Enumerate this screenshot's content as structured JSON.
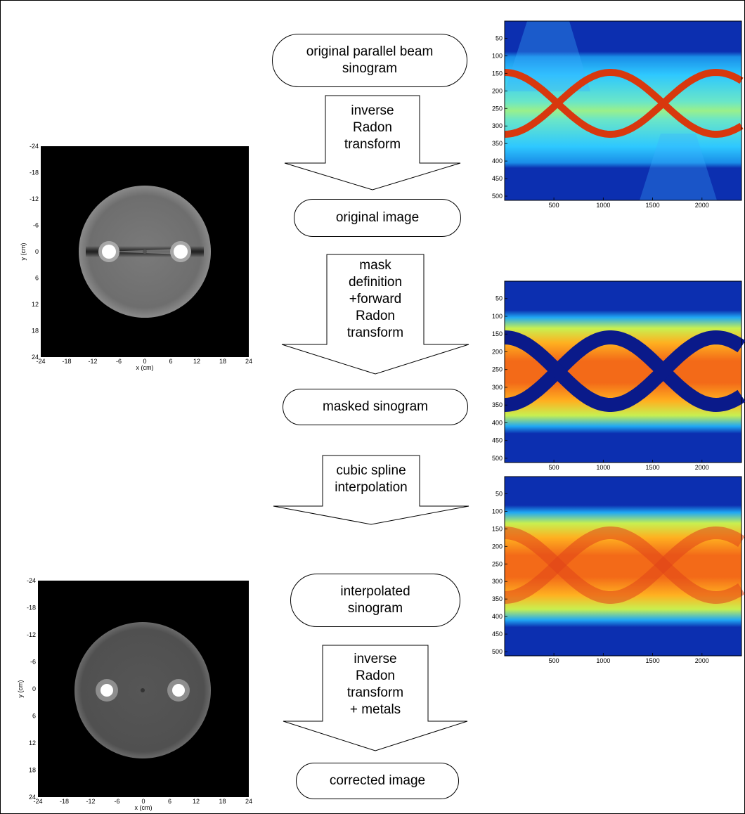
{
  "boxes": [
    {
      "id": "original-sinogram",
      "text": "original parallel beam\nsinogram"
    },
    {
      "id": "original-image",
      "text": "original image"
    },
    {
      "id": "masked-sinogram",
      "text": "masked sinogram"
    },
    {
      "id": "interpolated-sinogram",
      "text": "interpolated\nsinogram"
    },
    {
      "id": "corrected-image",
      "text": "corrected image"
    }
  ],
  "arrows": [
    {
      "id": "inverse-radon",
      "text": "inverse\nRadon\ntransform"
    },
    {
      "id": "mask-forward",
      "text": "mask\ndefinition\n+forward\nRadon\ntransform"
    },
    {
      "id": "cubic-spline",
      "text": "cubic spline\ninterpolation"
    },
    {
      "id": "inverse-radon-metals",
      "text": "inverse\nRadon\ntransform\n+ metals"
    }
  ],
  "ct_images": {
    "x_label": "x (cm)",
    "y_label": "y (cm)",
    "ticks": [
      "-24",
      "-18",
      "-12",
      "-6",
      "0",
      "6",
      "12",
      "18",
      "24"
    ],
    "range": [
      -24,
      24
    ]
  },
  "sinograms": {
    "x_ticks": [
      "500",
      "1000",
      "1500",
      "2000"
    ],
    "y_ticks": [
      "50",
      "100",
      "150",
      "200",
      "250",
      "300",
      "350",
      "400",
      "450",
      "500"
    ],
    "x_range": [
      1,
      2400
    ],
    "y_range": [
      1,
      512
    ]
  },
  "colors": {
    "sino_background": "#0a2fb0",
    "sino_band": "#22c6ff",
    "sino_trace": "#e23a10",
    "sino_mask": "#0a1a8a",
    "ct_background": "#000000"
  }
}
